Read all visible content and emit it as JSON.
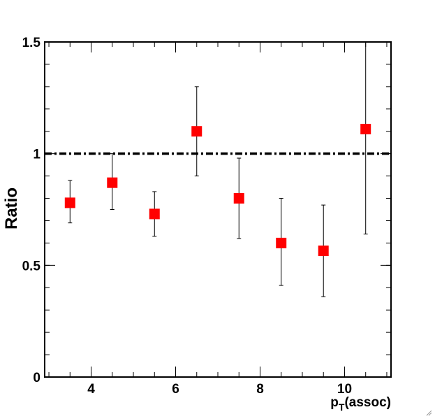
{
  "chart_data": {
    "type": "scatter",
    "title": "",
    "xlabel": {
      "p": "p",
      "sub": "T",
      "rest": "(assoc)"
    },
    "ylabel": "Ratio",
    "xlim": [
      2.9,
      11.1
    ],
    "ylim": [
      0,
      1.5
    ],
    "x_ticks": [
      4,
      6,
      8,
      10
    ],
    "x_tick_labels": [
      "4",
      "6",
      "8",
      "10"
    ],
    "y_ticks": [
      0,
      0.5,
      1,
      1.5
    ],
    "y_tick_labels": [
      "0",
      "0.5",
      "1",
      "1.5"
    ],
    "reference_line": {
      "y": 1.0,
      "style": "dash-dot"
    },
    "marker": {
      "shape": "square",
      "color": "#ff0000"
    },
    "grid": false,
    "legend": "none",
    "points": [
      {
        "x": 3.5,
        "y": 0.78,
        "err_low": 0.69,
        "err_high": 0.88
      },
      {
        "x": 4.5,
        "y": 0.87,
        "err_low": 0.75,
        "err_high": 1.0
      },
      {
        "x": 5.5,
        "y": 0.73,
        "err_low": 0.63,
        "err_high": 0.83
      },
      {
        "x": 6.5,
        "y": 1.1,
        "err_low": 0.9,
        "err_high": 1.3
      },
      {
        "x": 7.5,
        "y": 0.8,
        "err_low": 0.62,
        "err_high": 0.98
      },
      {
        "x": 8.5,
        "y": 0.6,
        "err_low": 0.41,
        "err_high": 0.8
      },
      {
        "x": 9.5,
        "y": 0.565,
        "err_low": 0.36,
        "err_high": 0.77
      },
      {
        "x": 10.5,
        "y": 1.11,
        "err_low": 0.64,
        "err_high": 1.5
      }
    ]
  }
}
